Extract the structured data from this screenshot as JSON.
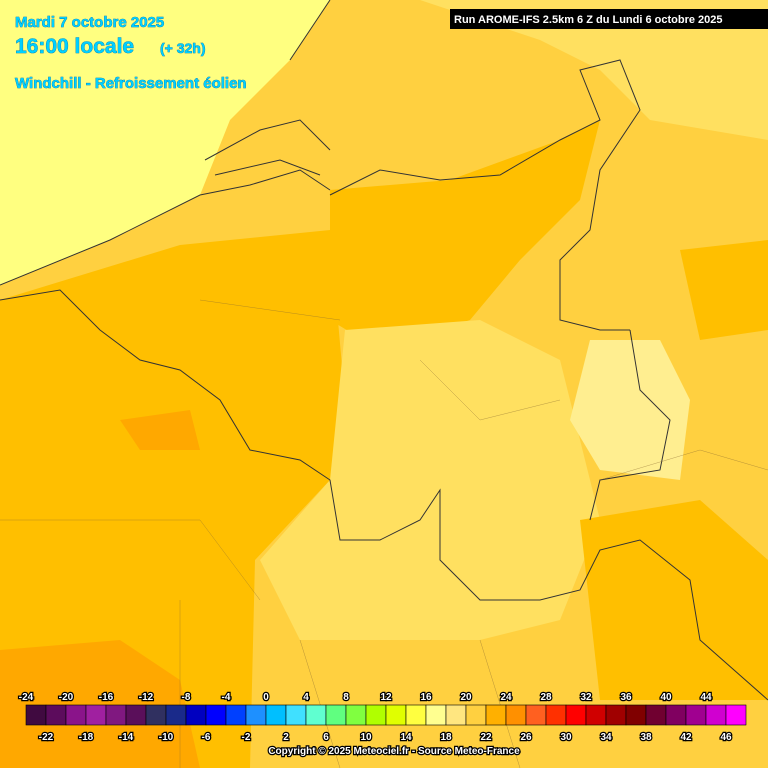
{
  "header": {
    "date": "Mardi 7 octobre 2025",
    "time": "16:00 locale",
    "offset": "(+ 32h)",
    "parameter": "Windchill - Refroissement éolien",
    "run": "Run AROME-IFS 2.5km 6 Z du Lundi 6 octobre 2025"
  },
  "legend": {
    "stops": [
      -24,
      -22,
      -20,
      -18,
      -16,
      -14,
      -12,
      -10,
      -8,
      -6,
      -4,
      -2,
      0,
      2,
      4,
      6,
      8,
      10,
      12,
      14,
      16,
      18,
      20,
      22,
      24,
      26,
      28,
      30,
      32,
      34,
      36,
      38,
      40,
      42,
      44,
      46
    ],
    "colors": [
      "#400a40",
      "#5c0c5c",
      "#8a148a",
      "#a020a0",
      "#801880",
      "#5a0f5a",
      "#303060",
      "#1a2a8a",
      "#0000c0",
      "#0000ff",
      "#0040ff",
      "#1e90ff",
      "#00bfff",
      "#40e0ff",
      "#60ffd0",
      "#60ff80",
      "#80ff40",
      "#b0ff00",
      "#e0ff00",
      "#ffff40",
      "#ffff90",
      "#ffe680",
      "#ffd040",
      "#ffb000",
      "#ff9000",
      "#ff6020",
      "#ff3000",
      "#ff0000",
      "#d00000",
      "#a00000",
      "#800000",
      "#700030",
      "#800060",
      "#a00090",
      "#d000d0",
      "#ff00ff"
    ]
  },
  "footer": {
    "copyright": "Copyright © 2025 Meteociel.fr - Source Meteo-France"
  }
}
